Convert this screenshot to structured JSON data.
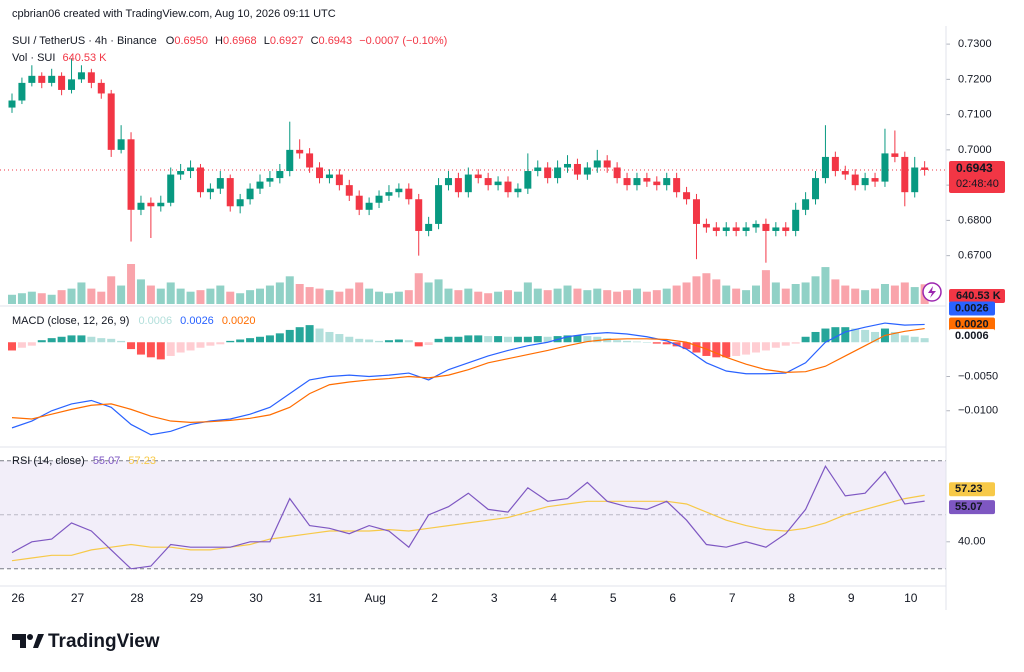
{
  "credit": "cpbrian06 created with TradingView.com, Aug 10, 2026 09:11 UTC",
  "brand": "TradingView",
  "x_labels": [
    "26",
    "27",
    "28",
    "29",
    "30",
    "31",
    "Aug",
    "2",
    "3",
    "4",
    "5",
    "6",
    "7",
    "8",
    "9",
    "10"
  ],
  "chart_data": [
    {
      "type": "candlestick",
      "legend": {
        "symbol": "SUI / TetherUS · 4h · Binance",
        "o": "O",
        "open": "0.6950",
        "h": "H",
        "high": "0.6968",
        "l": "L",
        "low": "0.6927",
        "c": "C",
        "close": "0.6943",
        "change": "−0.0007 (−0.10%)",
        "countdown": "02:48:40"
      },
      "volume_legend": {
        "name": "Vol · SUI",
        "value": "640.53 K"
      },
      "ylim": [
        0.656,
        0.734
      ],
      "yticks": [
        {
          "value": 0.67,
          "label": "0.6700"
        },
        {
          "value": 0.68,
          "label": "0.6800"
        },
        {
          "value": 0.69,
          "label": "0.6900"
        },
        {
          "value": 0.7,
          "label": "0.7000"
        },
        {
          "value": 0.71,
          "label": "0.7100"
        },
        {
          "value": 0.72,
          "label": "0.7200"
        },
        {
          "value": 0.73,
          "label": "0.7300"
        }
      ],
      "up_color": "#089981",
      "down_color": "#f23645",
      "ohlc": [
        [
          0.712,
          0.716,
          0.7105,
          0.714
        ],
        [
          0.714,
          0.7205,
          0.713,
          0.719
        ],
        [
          0.719,
          0.724,
          0.718,
          0.721
        ],
        [
          0.721,
          0.722,
          0.7175,
          0.719
        ],
        [
          0.719,
          0.723,
          0.718,
          0.721
        ],
        [
          0.721,
          0.722,
          0.7155,
          0.717
        ],
        [
          0.717,
          0.726,
          0.716,
          0.72
        ],
        [
          0.72,
          0.724,
          0.719,
          0.722
        ],
        [
          0.722,
          0.723,
          0.7175,
          0.719
        ],
        [
          0.719,
          0.72,
          0.7145,
          0.716
        ],
        [
          0.716,
          0.717,
          0.698,
          0.7
        ],
        [
          0.7,
          0.707,
          0.699,
          0.703
        ],
        [
          0.703,
          0.705,
          0.674,
          0.683
        ],
        [
          0.683,
          0.687,
          0.6815,
          0.685
        ],
        [
          0.685,
          0.6865,
          0.675,
          0.684
        ],
        [
          0.684,
          0.687,
          0.6825,
          0.685
        ],
        [
          0.685,
          0.695,
          0.684,
          0.693
        ],
        [
          0.693,
          0.696,
          0.6915,
          0.694
        ],
        [
          0.694,
          0.697,
          0.692,
          0.695
        ],
        [
          0.695,
          0.696,
          0.6865,
          0.688
        ],
        [
          0.688,
          0.6905,
          0.686,
          0.689
        ],
        [
          0.689,
          0.694,
          0.6875,
          0.692
        ],
        [
          0.692,
          0.693,
          0.6825,
          0.684
        ],
        [
          0.684,
          0.6875,
          0.682,
          0.686
        ],
        [
          0.686,
          0.6905,
          0.6845,
          0.689
        ],
        [
          0.689,
          0.693,
          0.6875,
          0.691
        ],
        [
          0.691,
          0.694,
          0.6895,
          0.692
        ],
        [
          0.692,
          0.696,
          0.6905,
          0.694
        ],
        [
          0.694,
          0.708,
          0.6925,
          0.7
        ],
        [
          0.7,
          0.703,
          0.6975,
          0.699
        ],
        [
          0.699,
          0.7005,
          0.6935,
          0.695
        ],
        [
          0.695,
          0.6965,
          0.6905,
          0.692
        ],
        [
          0.692,
          0.6945,
          0.6905,
          0.693
        ],
        [
          0.693,
          0.6945,
          0.6885,
          0.69
        ],
        [
          0.69,
          0.6915,
          0.6855,
          0.687
        ],
        [
          0.687,
          0.6885,
          0.6815,
          0.683
        ],
        [
          0.683,
          0.6865,
          0.6815,
          0.685
        ],
        [
          0.685,
          0.6885,
          0.6835,
          0.687
        ],
        [
          0.687,
          0.69,
          0.6855,
          0.688
        ],
        [
          0.688,
          0.6905,
          0.6865,
          0.689
        ],
        [
          0.689,
          0.6905,
          0.6845,
          0.686
        ],
        [
          0.686,
          0.6875,
          0.67,
          0.677
        ],
        [
          0.677,
          0.681,
          0.6755,
          0.679
        ],
        [
          0.679,
          0.692,
          0.6775,
          0.69
        ],
        [
          0.69,
          0.694,
          0.6885,
          0.692
        ],
        [
          0.692,
          0.6935,
          0.6865,
          0.688
        ],
        [
          0.688,
          0.695,
          0.6865,
          0.693
        ],
        [
          0.693,
          0.6945,
          0.6905,
          0.692
        ],
        [
          0.692,
          0.6935,
          0.6885,
          0.69
        ],
        [
          0.69,
          0.6925,
          0.6885,
          0.691
        ],
        [
          0.691,
          0.6925,
          0.6865,
          0.688
        ],
        [
          0.688,
          0.6905,
          0.6865,
          0.689
        ],
        [
          0.689,
          0.699,
          0.6875,
          0.694
        ],
        [
          0.694,
          0.697,
          0.6925,
          0.695
        ],
        [
          0.695,
          0.6965,
          0.6905,
          0.692
        ],
        [
          0.692,
          0.697,
          0.6905,
          0.695
        ],
        [
          0.695,
          0.6985,
          0.6935,
          0.696
        ],
        [
          0.696,
          0.6975,
          0.6915,
          0.693
        ],
        [
          0.693,
          0.6965,
          0.6915,
          0.695
        ],
        [
          0.695,
          0.7,
          0.6935,
          0.697
        ],
        [
          0.697,
          0.6985,
          0.6935,
          0.695
        ],
        [
          0.695,
          0.6965,
          0.6905,
          0.692
        ],
        [
          0.692,
          0.6935,
          0.6885,
          0.69
        ],
        [
          0.69,
          0.6935,
          0.6885,
          0.692
        ],
        [
          0.692,
          0.6935,
          0.6895,
          0.691
        ],
        [
          0.691,
          0.6925,
          0.6885,
          0.69
        ],
        [
          0.69,
          0.6935,
          0.6885,
          0.692
        ],
        [
          0.692,
          0.6935,
          0.6865,
          0.688
        ],
        [
          0.688,
          0.6895,
          0.6845,
          0.686
        ],
        [
          0.686,
          0.6875,
          0.669,
          0.679
        ],
        [
          0.679,
          0.6805,
          0.6765,
          0.678
        ],
        [
          0.678,
          0.6795,
          0.6755,
          0.677
        ],
        [
          0.677,
          0.6795,
          0.6755,
          0.678
        ],
        [
          0.678,
          0.6795,
          0.6755,
          0.677
        ],
        [
          0.677,
          0.6795,
          0.6755,
          0.678
        ],
        [
          0.678,
          0.68,
          0.6765,
          0.679
        ],
        [
          0.679,
          0.6805,
          0.668,
          0.677
        ],
        [
          0.677,
          0.6795,
          0.6755,
          0.678
        ],
        [
          0.678,
          0.6795,
          0.6755,
          0.677
        ],
        [
          0.677,
          0.685,
          0.6755,
          0.683
        ],
        [
          0.683,
          0.688,
          0.6815,
          0.686
        ],
        [
          0.686,
          0.694,
          0.6845,
          0.692
        ],
        [
          0.692,
          0.707,
          0.6905,
          0.698
        ],
        [
          0.698,
          0.6995,
          0.6925,
          0.694
        ],
        [
          0.694,
          0.6955,
          0.6915,
          0.693
        ],
        [
          0.693,
          0.6945,
          0.6885,
          0.69
        ],
        [
          0.69,
          0.6935,
          0.6885,
          0.692
        ],
        [
          0.692,
          0.6935,
          0.6895,
          0.691
        ],
        [
          0.691,
          0.706,
          0.6895,
          0.699
        ],
        [
          0.699,
          0.7055,
          0.6965,
          0.698
        ],
        [
          0.698,
          0.6995,
          0.684,
          0.688
        ],
        [
          0.688,
          0.698,
          0.6865,
          0.695
        ],
        [
          0.695,
          0.6968,
          0.6927,
          0.6943
        ]
      ],
      "volume": [
        300,
        350,
        400,
        350,
        300,
        450,
        500,
        700,
        500,
        400,
        900,
        600,
        1300,
        800,
        600,
        500,
        700,
        500,
        400,
        450,
        500,
        600,
        400,
        350,
        450,
        500,
        600,
        700,
        900,
        650,
        550,
        500,
        450,
        400,
        500,
        700,
        500,
        400,
        350,
        400,
        450,
        1000,
        700,
        800,
        500,
        450,
        500,
        400,
        350,
        400,
        450,
        400,
        700,
        500,
        450,
        500,
        600,
        500,
        450,
        500,
        450,
        400,
        450,
        500,
        400,
        450,
        500,
        600,
        700,
        900,
        1000,
        800,
        600,
        500,
        450,
        600,
        1100,
        700,
        500,
        650,
        700,
        900,
        1200,
        800,
        600,
        500,
        450,
        500,
        650,
        600,
        700,
        550,
        640.53
      ]
    },
    {
      "type": "macd",
      "legend": {
        "name": "MACD (close, 12, 26, 9)",
        "histogram": "0.0006",
        "macd": "0.0026",
        "signal": "0.0020"
      },
      "ylim": [
        -0.015,
        0.005
      ],
      "yticks": [
        {
          "value": -0.01,
          "label": "−0.0100"
        },
        {
          "value": -0.005,
          "label": "−0.0050"
        }
      ],
      "histogram_colors": [
        "#26a69a",
        "#b2dfdb",
        "#ff5252",
        "#ffcdd2"
      ],
      "histogram": [
        -0.0012,
        -0.0008,
        -0.0005,
        0.0003,
        0.0006,
        0.0008,
        0.001,
        0.001,
        0.0008,
        0.0006,
        0.0005,
        0.0002,
        -0.001,
        -0.0018,
        -0.0022,
        -0.0025,
        -0.002,
        -0.0015,
        -0.0012,
        -0.0008,
        -0.0005,
        -0.0003,
        0.0002,
        0.0004,
        0.0006,
        0.0008,
        0.001,
        0.0013,
        0.0018,
        0.0022,
        0.0025,
        0.002,
        0.0015,
        0.0012,
        0.0008,
        0.0005,
        0.0004,
        0.0002,
        0.0003,
        0.0004,
        0.0003,
        -0.0006,
        -0.0004,
        0.0005,
        0.0008,
        0.0008,
        0.001,
        0.001,
        0.0009,
        0.0009,
        0.0008,
        0.0008,
        0.0008,
        0.0009,
        0.0008,
        0.0009,
        0.001,
        0.001,
        0.0009,
        0.0008,
        0.0006,
        0.0003,
        0.0002,
        0.0001,
        0.0,
        -0.0002,
        -0.0003,
        -0.0006,
        -0.001,
        -0.0015,
        -0.002,
        -0.0022,
        -0.0022,
        -0.002,
        -0.0018,
        -0.0015,
        -0.0012,
        -0.0008,
        -0.0005,
        -0.0002,
        0.0008,
        0.0015,
        0.002,
        0.0022,
        0.0022,
        0.002,
        0.0018,
        0.0015,
        0.002,
        0.0015,
        0.001,
        0.0008,
        0.0006
      ],
      "series": [
        {
          "color": "#2962ff",
          "values": [
            -0.0125,
            -0.0115,
            -0.01,
            -0.009,
            -0.0085,
            -0.0095,
            -0.012,
            -0.0135,
            -0.013,
            -0.012,
            -0.0115,
            -0.0112,
            -0.0105,
            -0.0095,
            -0.0075,
            -0.0055,
            -0.005,
            -0.0048,
            -0.005,
            -0.0048,
            -0.0045,
            -0.0055,
            -0.004,
            -0.003,
            -0.002,
            -0.0012,
            -0.0005,
            0.0,
            0.0008,
            0.0012,
            0.0014,
            0.0012,
            0.0008,
            0.0002,
            -0.001,
            -0.003,
            -0.0042,
            -0.0046,
            -0.0046,
            -0.0045,
            -0.003,
            0.0,
            0.0015,
            0.0022,
            0.0028,
            0.0025,
            0.0026
          ]
        },
        {
          "color": "#ff6d00",
          "values": [
            -0.011,
            -0.0112,
            -0.0105,
            -0.0098,
            -0.0092,
            -0.009,
            -0.0098,
            -0.0108,
            -0.0115,
            -0.0117,
            -0.0116,
            -0.0114,
            -0.0111,
            -0.0106,
            -0.0095,
            -0.0075,
            -0.0062,
            -0.0058,
            -0.0055,
            -0.0053,
            -0.005,
            -0.0052,
            -0.0048,
            -0.004,
            -0.003,
            -0.0024,
            -0.0018,
            -0.0012,
            -0.0005,
            0.0001,
            0.0004,
            0.0005,
            0.0005,
            0.0004,
            0.0,
            -0.001,
            -0.0022,
            -0.0032,
            -0.004,
            -0.0044,
            -0.0043,
            -0.0035,
            -0.002,
            -0.0005,
            0.001,
            0.0016,
            0.002
          ]
        }
      ]
    },
    {
      "type": "rsi",
      "legend": {
        "name": "RSI (14, close)",
        "rsi": "55.07",
        "ma": "57.23"
      },
      "ylim": [
        24,
        74
      ],
      "band": [
        30,
        70
      ],
      "midline": 50,
      "yticks": [
        {
          "value": 40,
          "label": "40.00"
        }
      ],
      "series": [
        {
          "color": "#7e57c2",
          "values": [
            36,
            40,
            41,
            47,
            44,
            37,
            30,
            31,
            39,
            38,
            38,
            38,
            40,
            40,
            56,
            46,
            45,
            43,
            46,
            44,
            38,
            50,
            53,
            58,
            52,
            51,
            60,
            55,
            56,
            62,
            55,
            53,
            52,
            55,
            48,
            39,
            38,
            40,
            38,
            43,
            52,
            68,
            57,
            58,
            66,
            54,
            55.07
          ]
        },
        {
          "color": "#f7c948",
          "values": [
            33,
            34,
            35,
            35,
            37,
            38,
            39,
            38,
            38,
            37,
            37,
            38,
            39,
            41,
            42,
            43,
            44,
            44,
            44,
            44.5,
            44,
            45,
            46,
            47,
            48,
            49,
            51,
            53,
            54,
            55,
            55,
            55,
            55,
            55,
            54,
            51,
            48,
            46,
            44.5,
            44,
            45,
            47,
            50,
            52,
            54,
            56,
            57.23
          ]
        }
      ]
    }
  ]
}
